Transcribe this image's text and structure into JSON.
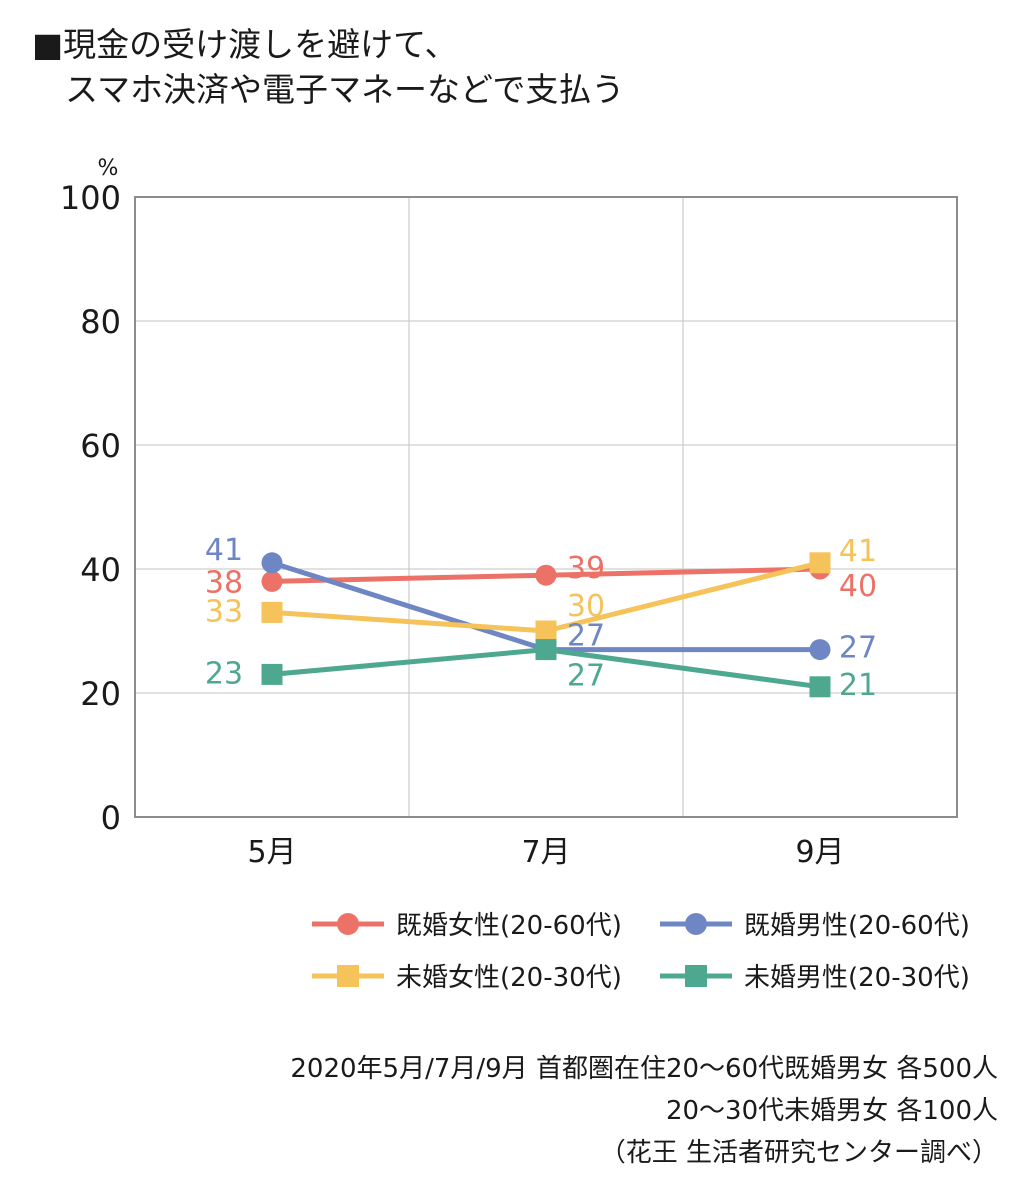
{
  "title_lines": [
    "■現金の受け渡しを避けて、",
    "スマホ決済や電子マネーなどで支払う"
  ],
  "chart_data": {
    "type": "line",
    "unit_label": "%",
    "categories": [
      "5月",
      "7月",
      "9月"
    ],
    "ylim": [
      0,
      100
    ],
    "yticks": [
      0,
      20,
      40,
      60,
      80,
      100
    ],
    "grid": true,
    "series": [
      {
        "name": "既婚女性(20-60代)",
        "marker": "circle",
        "color": "#ec7268",
        "values": [
          38,
          39,
          40
        ]
      },
      {
        "name": "既婚男性(20-60代)",
        "marker": "circle",
        "color": "#6f86c4",
        "values": [
          41,
          27,
          27
        ]
      },
      {
        "name": "未婚女性(20-30代)",
        "marker": "square",
        "color": "#f6c25a",
        "values": [
          33,
          30,
          41
        ]
      },
      {
        "name": "未婚男性(20-30代)",
        "marker": "square",
        "color": "#4ea890",
        "values": [
          23,
          27,
          21
        ]
      }
    ],
    "legend_placement": "bottom"
  },
  "footnote_lines": [
    "2020年5月/7月/9月 首都圏在住20～60代既婚男女 各500人",
    "20～30代未婚男女 各100人",
    "（花王 生活者研究センター調べ）"
  ]
}
